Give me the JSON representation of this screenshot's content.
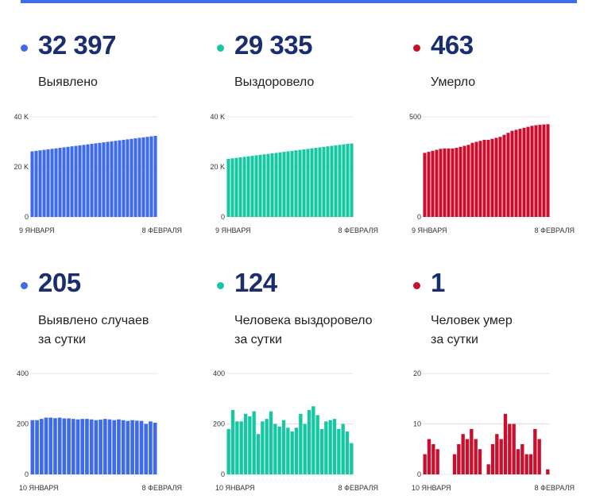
{
  "colors": {
    "blue": "#3f6be8",
    "teal": "#16c7a4",
    "red": "#c8102e",
    "number": "#1a2d6e"
  },
  "panels": [
    {
      "number": "32 397",
      "label": [
        "Выявлено"
      ],
      "color": "blue"
    },
    {
      "number": "29 335",
      "label": [
        "Выздоровело"
      ],
      "color": "teal"
    },
    {
      "number": "463",
      "label": [
        "Умерло"
      ],
      "color": "red"
    },
    {
      "number": "205",
      "label": [
        "Выявлено случаев",
        "за сутки"
      ],
      "color": "blue"
    },
    {
      "number": "124",
      "label": [
        "Человека выздоровело",
        "за сутки"
      ],
      "color": "teal"
    },
    {
      "number": "1",
      "label": [
        "Человек умер",
        "за сутки"
      ],
      "color": "red"
    }
  ],
  "chart_data": [
    {
      "type": "bar",
      "ylim": [
        0,
        40000
      ],
      "yticks": [
        {
          "v": 0,
          "label": "0"
        },
        {
          "v": 20000,
          "label": "20 K"
        },
        {
          "v": 40000,
          "label": "40 K"
        }
      ],
      "xstart_label": "9 ЯНВАРЯ",
      "xend_label": "8 ФЕВРАЛЯ",
      "values": [
        26200,
        26400,
        26600,
        26800,
        27000,
        27200,
        27400,
        27600,
        27800,
        28000,
        28200,
        28400,
        28600,
        28800,
        29000,
        29200,
        29400,
        29600,
        29800,
        30000,
        30200,
        30400,
        30600,
        30800,
        31000,
        31200,
        31400,
        31600,
        31800,
        32000,
        32200,
        32397
      ]
    },
    {
      "type": "bar",
      "ylim": [
        0,
        40000
      ],
      "yticks": [
        {
          "v": 0,
          "label": "0"
        },
        {
          "v": 20000,
          "label": "20 K"
        },
        {
          "v": 40000,
          "label": "40 K"
        }
      ],
      "xstart_label": "9 ЯНВАРЯ",
      "xend_label": "8 ФЕВРАЛЯ",
      "values": [
        23200,
        23400,
        23600,
        23800,
        24000,
        24200,
        24400,
        24600,
        24800,
        25000,
        25200,
        25400,
        25600,
        25800,
        26000,
        26200,
        26400,
        26600,
        26800,
        27000,
        27200,
        27400,
        27600,
        27800,
        28000,
        28200,
        28400,
        28600,
        28800,
        29000,
        29200,
        29335
      ]
    },
    {
      "type": "bar",
      "ylim": [
        0,
        500
      ],
      "yticks": [
        {
          "v": 0,
          "label": "0"
        },
        {
          "v": 500,
          "label": "500"
        }
      ],
      "xstart_label": "9 ЯНВАРЯ",
      "xend_label": "8 ФЕВРАЛЯ",
      "values": [
        320,
        325,
        330,
        335,
        340,
        342,
        342,
        342,
        345,
        350,
        355,
        360,
        370,
        375,
        380,
        385,
        385,
        390,
        395,
        400,
        410,
        420,
        430,
        435,
        440,
        445,
        450,
        455,
        458,
        460,
        462,
        463
      ]
    },
    {
      "type": "bar",
      "ylim": [
        0,
        400
      ],
      "yticks": [
        {
          "v": 0,
          "label": "0"
        },
        {
          "v": 200,
          "label": "200"
        },
        {
          "v": 400,
          "label": "400"
        }
      ],
      "xstart_label": "10 ЯНВАРЯ",
      "xend_label": "8 ФЕВРАЛЯ",
      "values": [
        215,
        215,
        220,
        225,
        225,
        223,
        225,
        222,
        222,
        220,
        218,
        220,
        220,
        218,
        215,
        217,
        220,
        218,
        215,
        218,
        215,
        212,
        215,
        213,
        212,
        200,
        210,
        205
      ]
    },
    {
      "type": "bar",
      "ylim": [
        0,
        400
      ],
      "yticks": [
        {
          "v": 0,
          "label": "0"
        },
        {
          "v": 200,
          "label": "200"
        },
        {
          "v": 400,
          "label": "400"
        }
      ],
      "xstart_label": "10 ЯНВАРЯ",
      "xend_label": "8 ФЕВРАЛЯ",
      "values": [
        180,
        255,
        210,
        210,
        240,
        230,
        250,
        160,
        210,
        220,
        250,
        200,
        190,
        215,
        185,
        170,
        185,
        240,
        200,
        255,
        270,
        235,
        180,
        210,
        215,
        220,
        180,
        200,
        170,
        124
      ]
    },
    {
      "type": "bar",
      "ylim": [
        0,
        20
      ],
      "yticks": [
        {
          "v": 0,
          "label": "0"
        },
        {
          "v": 10,
          "label": "10"
        },
        {
          "v": 20,
          "label": "20"
        }
      ],
      "xstart_label": "10 ЯНВАРЯ",
      "xend_label": "8 ФЕВРАЛЯ",
      "values": [
        4,
        7,
        6,
        5,
        0,
        0,
        0,
        4,
        6,
        8,
        7,
        9,
        7,
        5,
        0,
        2,
        6,
        8,
        7,
        12,
        10,
        10,
        5,
        6,
        4,
        4,
        9,
        7,
        0,
        1
      ]
    }
  ]
}
